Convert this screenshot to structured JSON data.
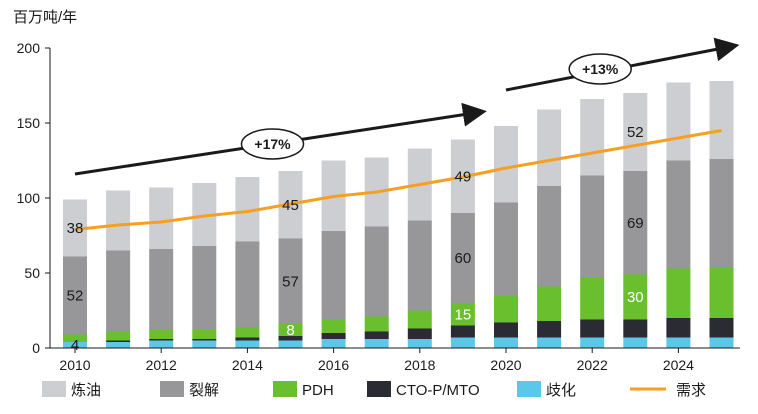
{
  "chart_data": {
    "type": "bar",
    "stacked": true,
    "ylabel": "百万吨/年",
    "ylim": [
      0,
      200
    ],
    "yticks": [
      0,
      50,
      100,
      150,
      200
    ],
    "categories": [
      "2010",
      "2011",
      "2012",
      "2013",
      "2014",
      "2015",
      "2016",
      "2017",
      "2018",
      "2019",
      "2020",
      "2021",
      "2022",
      "2023",
      "2024",
      "2025"
    ],
    "xtick_labels": [
      "2010",
      "2012",
      "2014",
      "2016",
      "2018",
      "2020",
      "2022",
      "2024"
    ],
    "series": [
      {
        "name": "歧化",
        "color": "#5bc8e8",
        "values": [
          4,
          4,
          5,
          5,
          5,
          5,
          6,
          6,
          6,
          7,
          7,
          7,
          7,
          7,
          7,
          7
        ]
      },
      {
        "name": "CTO-P/MTO",
        "color": "#2b2b33",
        "values": [
          0,
          1,
          1,
          1,
          2,
          3,
          4,
          5,
          7,
          8,
          10,
          11,
          12,
          12,
          13,
          13
        ]
      },
      {
        "name": "PDH",
        "color": "#6abf2e",
        "values": [
          5,
          6,
          6,
          6,
          7,
          8,
          9,
          10,
          12,
          15,
          18,
          23,
          28,
          30,
          33,
          34
        ]
      },
      {
        "name": "裂解",
        "color": "#97979a",
        "values": [
          52,
          54,
          54,
          56,
          57,
          57,
          59,
          60,
          60,
          60,
          62,
          67,
          68,
          69,
          72,
          72
        ]
      },
      {
        "name": "炼油",
        "color": "#cdced2",
        "values": [
          38,
          40,
          41,
          42,
          43,
          45,
          47,
          46,
          48,
          49,
          51,
          51,
          51,
          52,
          52,
          52
        ]
      }
    ],
    "demand": {
      "name": "需求",
      "color": "#f5a020",
      "values": [
        79,
        82,
        84,
        88,
        91,
        96,
        101,
        104,
        109,
        114,
        120,
        125,
        130,
        135,
        140,
        145
      ]
    },
    "data_labels": [
      {
        "text": "4",
        "series": "歧化",
        "index": 0
      },
      {
        "text": "52",
        "series": "裂解",
        "index": 0
      },
      {
        "text": "38",
        "series": "炼油",
        "index": 0
      },
      {
        "text": "8",
        "series": "PDH",
        "index": 5
      },
      {
        "text": "57",
        "series": "裂解",
        "index": 5
      },
      {
        "text": "45",
        "series": "炼油",
        "index": 5
      },
      {
        "text": "15",
        "series": "PDH",
        "index": 9
      },
      {
        "text": "60",
        "series": "裂解",
        "index": 9
      },
      {
        "text": "49",
        "series": "炼油",
        "index": 9
      },
      {
        "text": "30",
        "series": "PDH",
        "index": 13
      },
      {
        "text": "69",
        "series": "裂解",
        "index": 13
      },
      {
        "text": "52",
        "series": "炼油",
        "index": 13
      }
    ],
    "annotations": [
      {
        "text": "+17%",
        "from_index": 0,
        "to_index": 9
      },
      {
        "text": "+13%",
        "from_index": 10,
        "to_index": 15
      }
    ],
    "legend": [
      "炼油",
      "裂解",
      "PDH",
      "CTO-P/MTO",
      "歧化",
      "需求"
    ],
    "legend_position": "bottom"
  }
}
